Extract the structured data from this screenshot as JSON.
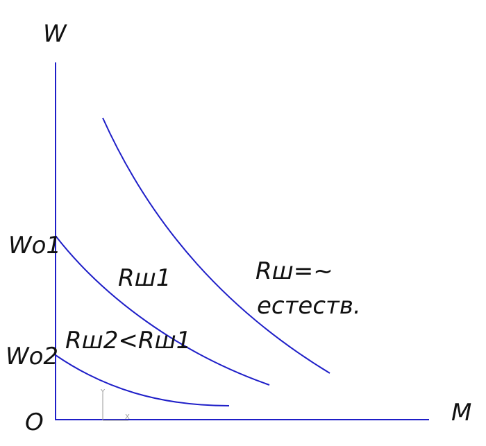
{
  "axes": {
    "y_label": "W",
    "x_label": "M",
    "origin": "O"
  },
  "levels": {
    "w01": "Wo1",
    "w02": "Wo2"
  },
  "curves": {
    "natural_name": "Rш=~",
    "natural_note": "естеств.",
    "r1": "Rш1",
    "r2": "Rш2<Rш1"
  },
  "ucs_icon": {
    "y": "Y",
    "x": "X"
  }
}
